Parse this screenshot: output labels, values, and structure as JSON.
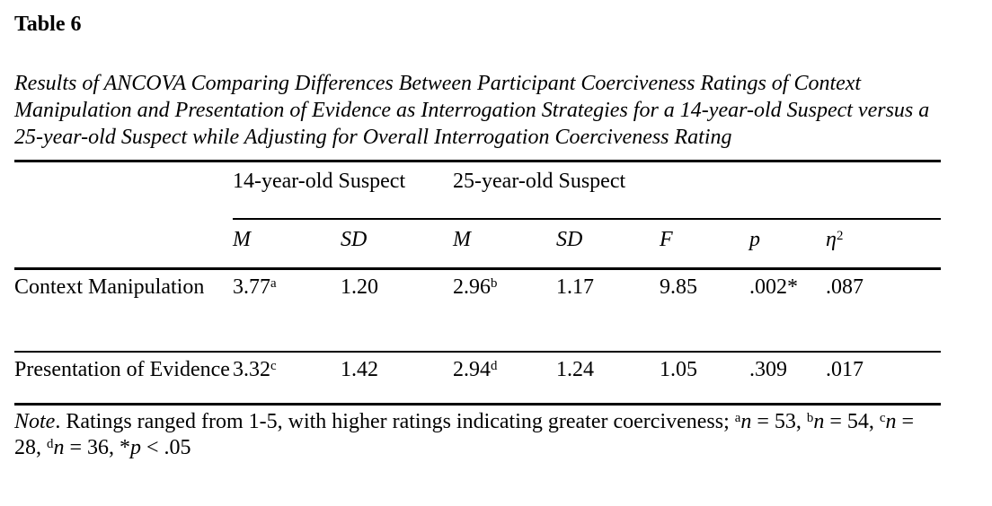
{
  "colors": {
    "background": "#ffffff",
    "text": "#000000",
    "rule": "#000000"
  },
  "title": "Table 6",
  "caption": "Results of ANCOVA Comparing Differences Between Participant Coerciveness Ratings of Context Manipulation and Presentation of Evidence as Interrogation Strategies for a 14-year-old Suspect versus a 25-year-old Suspect while Adjusting for Overall Interrogation Coerciveness Rating",
  "table": {
    "spanners": [
      {
        "label": "14-year-old Suspect"
      },
      {
        "label": "25-year-old Suspect"
      }
    ],
    "columns": [
      {
        "label": "M"
      },
      {
        "label": "SD"
      },
      {
        "label": "M"
      },
      {
        "label": "SD"
      },
      {
        "label": "F"
      },
      {
        "label": "p"
      },
      {
        "label": "η",
        "sup": "2"
      }
    ],
    "rows": [
      {
        "label": "Context Manipulation",
        "cells": [
          {
            "value": "3.77",
            "sup": "a"
          },
          {
            "value": "1.20"
          },
          {
            "value": "2.96",
            "sup": "b"
          },
          {
            "value": "1.17"
          },
          {
            "value": "9.85"
          },
          {
            "value": ".002*"
          },
          {
            "value": ".087"
          }
        ]
      },
      {
        "label": "Presentation of Evidence",
        "cells": [
          {
            "value": "3.32",
            "sup": "c"
          },
          {
            "value": "1.42"
          },
          {
            "value": "2.94",
            "sup": "d"
          },
          {
            "value": "1.24"
          },
          {
            "value": "1.05"
          },
          {
            "value": ".309"
          },
          {
            "value": ".017"
          }
        ]
      }
    ]
  },
  "note_segments": [
    {
      "text": "Note",
      "style": "italic"
    },
    {
      "text": ". Ratings ranged from 1-5, with higher ratings indicating greater coerciveness; ",
      "style": "plain"
    },
    {
      "text": "a",
      "style": "sup"
    },
    {
      "text": "n",
      "style": "italic"
    },
    {
      "text": " = 53, ",
      "style": "plain"
    },
    {
      "text": "b",
      "style": "sup"
    },
    {
      "text": "n",
      "style": "italic"
    },
    {
      "text": " = 54, ",
      "style": "plain"
    },
    {
      "text": "c",
      "style": "sup"
    },
    {
      "text": "n",
      "style": "italic"
    },
    {
      "text": " = 28, ",
      "style": "plain"
    },
    {
      "text": "d",
      "style": "sup"
    },
    {
      "text": "n",
      "style": "italic"
    },
    {
      "text": " = 36, *",
      "style": "plain"
    },
    {
      "text": "p",
      "style": "italic"
    },
    {
      "text": " < .05",
      "style": "plain"
    }
  ]
}
